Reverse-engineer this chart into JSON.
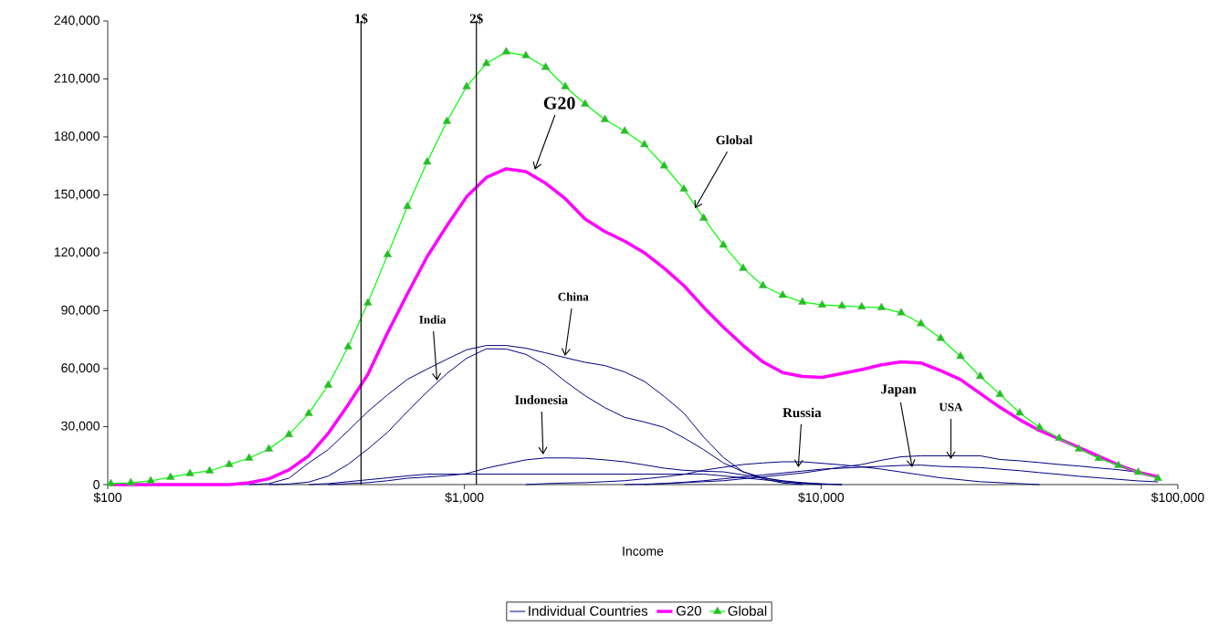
{
  "chart_data": {
    "type": "line",
    "xlabel": "Income",
    "log": "x",
    "legend": "bottom",
    "xlim": [
      100,
      100000
    ],
    "xticks": [
      {
        "value": 100,
        "label": "$100"
      },
      {
        "value": 1000,
        "label": "$1,000"
      },
      {
        "value": 10000,
        "label": "$10,000"
      },
      {
        "value": 100000,
        "label": "$100,000"
      }
    ],
    "ylim": [
      0,
      240000
    ],
    "yticks": [
      0,
      {
        "value": 30000,
        "label": "30,000"
      },
      {
        "value": 60000,
        "label": "60,000"
      },
      {
        "value": 90000,
        "label": "90,000"
      },
      {
        "value": 120000,
        "label": "120,000"
      },
      {
        "value": 150000,
        "label": "150,000"
      },
      {
        "value": 180000,
        "label": "180,000"
      },
      {
        "value": 210000,
        "label": "210,000"
      },
      {
        "value": 240000,
        "label": "240,000"
      }
    ],
    "x": [
      102,
      116,
      132,
      150,
      170,
      193,
      219,
      249,
      283,
      322,
      366,
      415,
      472,
      536,
      609,
      692,
      786,
      893,
      1014,
      1152,
      1309,
      1487,
      1689,
      1918,
      2179,
      2476,
      2813,
      3195,
      3629,
      4123,
      4684,
      5321,
      6045,
      6867,
      7801,
      8862,
      10067,
      11436,
      12991,
      14757,
      16764,
      19044,
      21634,
      24576,
      27918,
      31714,
      36027,
      40926,
      46491,
      52813,
      59995,
      68153,
      77421,
      87949
    ],
    "series": [
      {
        "name": "Individual Countries",
        "color": "#000080",
        "values": [
          null,
          null,
          null,
          null,
          null,
          null,
          null,
          0,
          500,
          3300,
          11200,
          18100,
          27900,
          37800,
          46500,
          54500,
          59800,
          64900,
          69800,
          72000,
          72000,
          70600,
          68200,
          65700,
          63300,
          61600,
          58300,
          53400,
          45700,
          37000,
          24600,
          14000,
          6600,
          3000,
          800,
          0,
          null,
          null,
          null,
          null,
          null,
          null,
          null,
          null,
          null,
          null,
          null,
          null,
          null,
          null,
          null,
          null,
          null,
          null
        ]
      },
      {
        "color": "#000080",
        "values": [
          null,
          null,
          null,
          null,
          null,
          null,
          null,
          null,
          0,
          300,
          1300,
          4400,
          10500,
          18400,
          27100,
          37800,
          48000,
          57500,
          65400,
          70300,
          70200,
          67400,
          61600,
          53400,
          46000,
          39800,
          34800,
          32400,
          29600,
          24200,
          18100,
          11200,
          6600,
          3600,
          1600,
          500,
          0,
          null,
          null,
          null,
          null,
          null,
          null,
          null,
          null,
          null,
          null,
          null,
          null,
          null,
          null,
          null,
          null,
          null
        ]
      },
      {
        "color": "#000080",
        "values": [
          null,
          null,
          null,
          null,
          null,
          null,
          null,
          null,
          null,
          null,
          null,
          0,
          500,
          1000,
          2000,
          3300,
          3900,
          4600,
          5700,
          8500,
          10700,
          12800,
          13800,
          13800,
          13600,
          12800,
          11800,
          10200,
          8500,
          7400,
          6900,
          6600,
          5000,
          3500,
          2000,
          1000,
          400,
          0,
          null,
          null,
          null,
          null,
          null,
          null,
          null,
          null,
          null,
          null,
          null,
          null,
          null,
          null,
          null,
          null
        ]
      },
      {
        "color": "#000080",
        "values": [
          null,
          null,
          null,
          null,
          null,
          null,
          null,
          null,
          null,
          null,
          null,
          null,
          null,
          null,
          null,
          null,
          null,
          null,
          null,
          null,
          null,
          0,
          500,
          800,
          1000,
          1500,
          2000,
          3000,
          4000,
          5300,
          7400,
          9000,
          10400,
          11200,
          11800,
          11800,
          11000,
          10200,
          9200,
          8000,
          6500,
          5000,
          3500,
          2500,
          1500,
          1000,
          500,
          0,
          null,
          null,
          null,
          null,
          null,
          null
        ]
      },
      {
        "color": "#000080",
        "values": [
          null,
          null,
          null,
          null,
          null,
          null,
          null,
          null,
          null,
          null,
          null,
          null,
          null,
          null,
          null,
          null,
          null,
          null,
          null,
          null,
          null,
          null,
          null,
          null,
          null,
          null,
          null,
          0,
          600,
          1200,
          2000,
          3000,
          4000,
          5000,
          6000,
          7000,
          8000,
          8500,
          9000,
          9400,
          9900,
          10100,
          9400,
          9100,
          8800,
          8000,
          7200,
          6200,
          5300,
          4300,
          3500,
          2700,
          1900,
          1400
        ]
      },
      {
        "color": "#000080",
        "values": [
          null,
          null,
          null,
          null,
          null,
          null,
          null,
          null,
          null,
          null,
          null,
          null,
          null,
          null,
          null,
          null,
          null,
          null,
          null,
          null,
          null,
          null,
          null,
          null,
          null,
          null,
          0,
          200,
          500,
          1000,
          1500,
          2000,
          3000,
          4000,
          5000,
          6000,
          7500,
          9100,
          10400,
          12600,
          14400,
          14900,
          14900,
          14900,
          14900,
          13000,
          12300,
          11400,
          10400,
          9600,
          8600,
          7700,
          6400,
          null
        ]
      },
      {
        "color": "#000080",
        "values": [
          null,
          null,
          null,
          null,
          null,
          null,
          null,
          null,
          null,
          null,
          0,
          500,
          1500,
          2500,
          3500,
          4500,
          5400,
          5400,
          5400,
          5400,
          5400,
          5400,
          5400,
          5400,
          5400,
          5400,
          5400,
          5400,
          5400,
          5400,
          5400,
          4500,
          3500,
          2500,
          1500,
          800,
          300,
          0,
          null,
          null,
          null,
          null,
          null,
          null,
          null,
          null,
          null,
          null,
          null,
          null,
          null,
          null,
          null,
          null
        ]
      },
      {
        "name": "G20",
        "color": "#ff00ff",
        "values": [
          0,
          0,
          0,
          0,
          0,
          0,
          0,
          900,
          3000,
          7600,
          14900,
          26500,
          41300,
          57000,
          78600,
          98700,
          118000,
          134000,
          149000,
          159000,
          163500,
          162000,
          156000,
          148000,
          137500,
          131000,
          126000,
          120000,
          112000,
          103000,
          91800,
          81500,
          72000,
          63500,
          58000,
          56000,
          55500,
          57500,
          59500,
          62000,
          63500,
          63000,
          59000,
          54400,
          47200,
          40000,
          33600,
          28000,
          23700,
          19200,
          14700,
          10100,
          6400,
          4000
        ]
      },
      {
        "name": "Global",
        "color": "#00ff00",
        "marker": "triangle",
        "values": [
          500,
          900,
          1900,
          3800,
          5700,
          7100,
          10400,
          13700,
          18400,
          25900,
          36800,
          51500,
          71300,
          94000,
          119000,
          144000,
          167000,
          188000,
          206000,
          218000,
          224000,
          222000,
          216000,
          206000,
          197000,
          189000,
          183000,
          176000,
          165000,
          153000,
          138000,
          124000,
          112000,
          103000,
          98000,
          94500,
          93000,
          92500,
          92000,
          91600,
          88900,
          83300,
          75700,
          66400,
          56000,
          46700,
          37100,
          29600,
          24000,
          18400,
          13600,
          9900,
          6400,
          3200
        ]
      }
    ],
    "ref_lines": [
      {
        "axis": "x",
        "value": 513,
        "color": "#000000"
      },
      {
        "axis": "x",
        "value": 1080,
        "color": "#000000"
      }
    ],
    "annotations": [
      {
        "text": "G20",
        "x": 1574,
        "y": 163000
      },
      {
        "text": "Global",
        "x": 4426,
        "y": 143000
      },
      {
        "text": "China",
        "x": 1914,
        "y": 66600
      },
      {
        "text": "India",
        "x": 838,
        "y": 53800
      },
      {
        "text": "Indonesia",
        "x": 1662,
        "y": 15600
      },
      {
        "text": "Russia",
        "x": 8630,
        "y": 9000
      },
      {
        "text": "Japan",
        "x": 18000,
        "y": 9000
      },
      {
        "text": "USA",
        "x": 23100,
        "y": 13200
      },
      {
        "text": "1$",
        "x": 513,
        "y": 240000
      },
      {
        "text": "2$",
        "x": 1080,
        "y": 240000
      }
    ]
  }
}
